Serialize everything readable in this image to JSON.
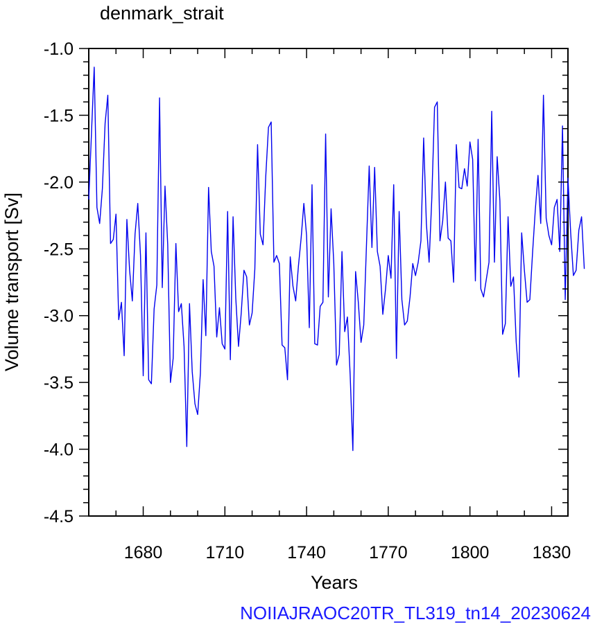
{
  "chart_data": {
    "type": "line",
    "title": "denmark_strait",
    "xlabel": "Years",
    "ylabel": "Volume transport [Sv]",
    "xlim": [
      1660,
      1836
    ],
    "ylim": [
      -4.5,
      -1.0
    ],
    "xticks": [
      1680,
      1710,
      1740,
      1770,
      1800,
      1830
    ],
    "xtick_labels": [
      "1680",
      "1710",
      "1740",
      "1770",
      "1800",
      "1830"
    ],
    "yticks": [
      -1.0,
      -1.5,
      -2.0,
      -2.5,
      -3.0,
      -3.5,
      -4.0,
      -4.5
    ],
    "ytick_labels": [
      "-1.0",
      "-1.5",
      "-2.0",
      "-2.5",
      "-3.0",
      "-3.5",
      "-4.0",
      "-4.5"
    ],
    "grid": false,
    "line_color": "#0000ee",
    "x_start": 1660,
    "x_step": 1,
    "series": [
      {
        "values": [
          -2.13,
          -1.63,
          -1.14,
          -2.19,
          -2.31,
          -2.05,
          -1.56,
          -1.35,
          -2.46,
          -2.43,
          -2.24,
          -3.03,
          -2.9,
          -3.3,
          -2.28,
          -2.66,
          -2.89,
          -2.39,
          -2.16,
          -2.55,
          -3.45,
          -2.38,
          -3.48,
          -3.51,
          -2.95,
          -2.77,
          -1.37,
          -2.79,
          -2.03,
          -2.47,
          -3.5,
          -3.32,
          -2.46,
          -2.97,
          -2.91,
          -3.23,
          -3.98,
          -2.91,
          -3.42,
          -3.66,
          -3.74,
          -3.43,
          -2.73,
          -3.15,
          -2.04,
          -2.52,
          -2.63,
          -3.16,
          -2.94,
          -3.21,
          -3.25,
          -2.22,
          -3.33,
          -2.26,
          -2.87,
          -3.23,
          -2.98,
          -2.66,
          -2.71,
          -3.07,
          -2.98,
          -2.65,
          -1.72,
          -2.39,
          -2.47,
          -1.96,
          -1.59,
          -1.55,
          -2.6,
          -2.55,
          -2.61,
          -3.22,
          -3.24,
          -3.48,
          -2.56,
          -2.78,
          -2.89,
          -2.63,
          -2.42,
          -2.16,
          -2.4,
          -3.09,
          -2.02,
          -3.21,
          -3.22,
          -2.93,
          -2.9,
          -1.64,
          -2.86,
          -2.2,
          -2.61,
          -3.37,
          -3.29,
          -2.52,
          -3.12,
          -3.01,
          -3.44,
          -4.01,
          -2.67,
          -2.9,
          -3.2,
          -3.07,
          -2.47,
          -1.88,
          -2.49,
          -1.89,
          -2.52,
          -2.63,
          -2.99,
          -2.8,
          -2.55,
          -2.72,
          -2.02,
          -3.32,
          -2.22,
          -2.88,
          -3.07,
          -3.04,
          -2.86,
          -2.61,
          -2.7,
          -2.6,
          -2.44,
          -1.67,
          -2.31,
          -2.6,
          -2.12,
          -1.44,
          -1.4,
          -2.44,
          -2.29,
          -2.0,
          -2.42,
          -2.44,
          -2.75,
          -1.72,
          -2.04,
          -2.05,
          -1.9,
          -2.03,
          -1.7,
          -1.83,
          -2.74,
          -1.68,
          -2.8,
          -2.86,
          -2.73,
          -2.6,
          -1.47,
          -2.6,
          -1.81,
          -2.14,
          -3.14,
          -3.06,
          -2.26,
          -2.78,
          -2.71,
          -3.2,
          -3.46,
          -2.38,
          -2.66,
          -2.9,
          -2.88,
          -2.53,
          -2.21,
          -1.95,
          -2.31,
          -1.35,
          -2.27,
          -2.4,
          -2.47,
          -2.19,
          -2.13,
          -2.52,
          -1.58,
          -2.88,
          -1.97,
          -2.38,
          -2.7,
          -2.66,
          -2.36,
          -2.26,
          -2.65
        ]
      }
    ]
  },
  "footer_text": "NOIIAJRAOC20TR_TL319_tn14_20230624"
}
